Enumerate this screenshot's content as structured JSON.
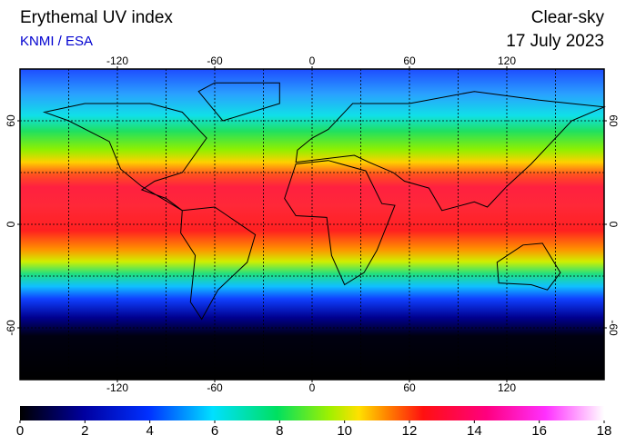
{
  "header": {
    "title": "Erythemal UV index",
    "source": "KNMI / ESA",
    "condition": "Clear-sky",
    "date": "17 July 2023"
  },
  "map": {
    "lon_ticks": [
      -120,
      -60,
      0,
      60,
      120
    ],
    "lat_ticks": [
      60,
      0,
      -60
    ],
    "lonlim": [
      -180,
      180
    ],
    "latlim": [
      -90,
      90
    ]
  },
  "colorbar": {
    "range": [
      0,
      18
    ],
    "ticks": [
      0,
      2,
      4,
      6,
      8,
      10,
      12,
      14,
      16,
      18
    ]
  }
}
